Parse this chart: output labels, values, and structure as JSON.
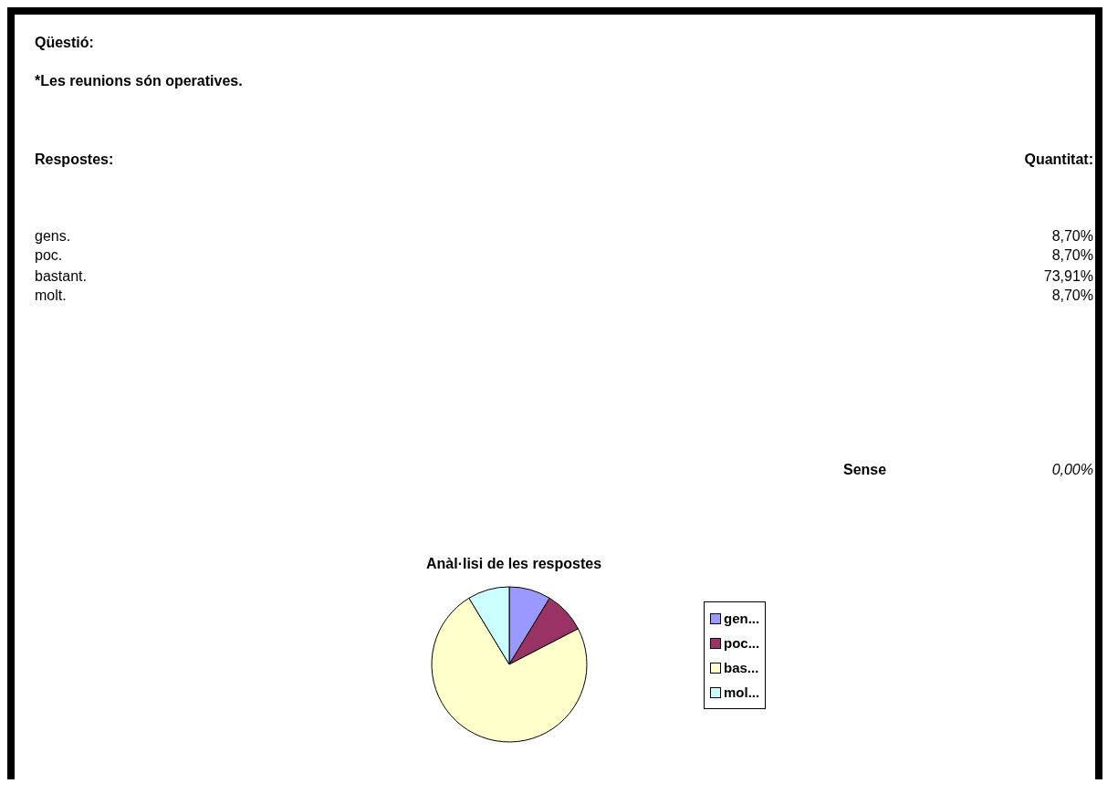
{
  "chart_data": {
    "type": "pie",
    "title": "Anàl·lisi de les respostes",
    "categories": [
      "gen...",
      "poc...",
      "bas...",
      "mol..."
    ],
    "values": [
      8.7,
      8.7,
      73.91,
      8.7
    ],
    "colors": [
      "#9999ff",
      "#993366",
      "#ffffcc",
      "#ccffff"
    ],
    "legend": "right",
    "annotations": [
      "Qüestió:",
      "*Les reunions són operatives.",
      "Respostes:",
      "Quantitat:",
      "gens.",
      "poc.",
      "bastant.",
      "molt.",
      "8,70%",
      "8,70%",
      "73,91%",
      "8,70%",
      "Sense",
      "0,00%"
    ]
  }
}
